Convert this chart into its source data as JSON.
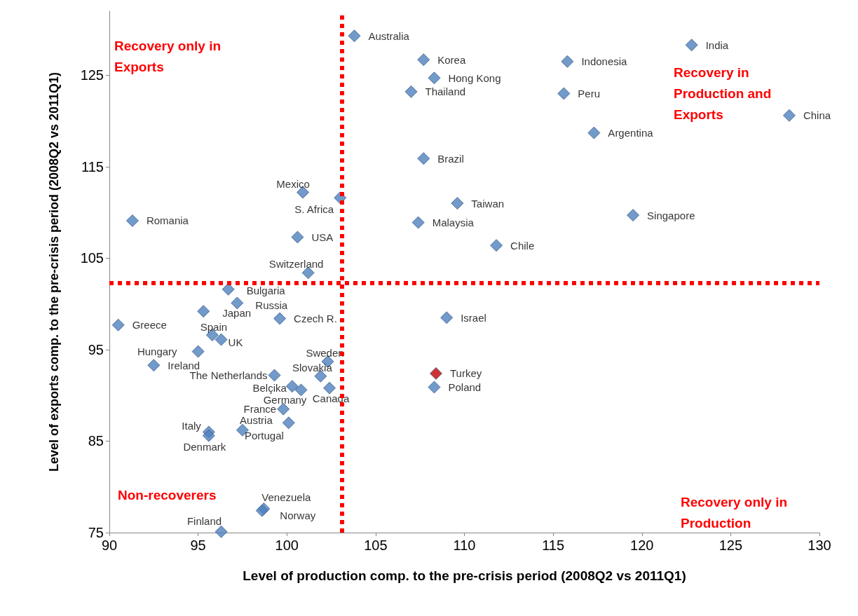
{
  "chart_data": {
    "type": "scatter",
    "xlabel": "Level of production comp. to the pre-crisis period (2008Q2 vs 2011Q1)",
    "ylabel": "Level of exports comp. to the pre-crisis period (2008Q2 vs 2011Q1)",
    "x": [
      103.8,
      122.8,
      107.7,
      115.8,
      108.3,
      107.0,
      115.6,
      128.3,
      117.3,
      107.7,
      100.9,
      103.0,
      109.6,
      119.5,
      91.3,
      107.4,
      100.6,
      111.8,
      101.2,
      96.7,
      97.2,
      95.3,
      99.6,
      109.0,
      90.5,
      95.8,
      96.3,
      95.0,
      102.3,
      92.5,
      108.4,
      99.3,
      101.9,
      108.3,
      100.3,
      100.8,
      102.4,
      99.8,
      100.1,
      97.5,
      95.6,
      95.6,
      98.7,
      98.6,
      96.3
    ],
    "values": [
      129.3,
      128.3,
      126.7,
      126.5,
      124.7,
      123.2,
      123.0,
      120.6,
      118.7,
      115.9,
      112.2,
      111.6,
      111.0,
      109.7,
      109.1,
      108.9,
      107.3,
      106.4,
      103.4,
      101.6,
      100.1,
      99.2,
      98.4,
      98.5,
      97.7,
      96.6,
      96.1,
      94.8,
      93.7,
      93.3,
      92.4,
      92.2,
      92.1,
      90.9,
      91.0,
      90.6,
      90.8,
      88.5,
      87.0,
      86.2,
      86.0,
      85.6,
      77.6,
      77.4,
      75.1
    ],
    "colors": [
      "#4f81bd",
      "#4f81bd",
      "#4f81bd",
      "#4f81bd",
      "#4f81bd",
      "#4f81bd",
      "#4f81bd",
      "#4f81bd",
      "#4f81bd",
      "#4f81bd",
      "#4f81bd",
      "#4f81bd",
      "#4f81bd",
      "#4f81bd",
      "#4f81bd",
      "#4f81bd",
      "#4f81bd",
      "#4f81bd",
      "#4f81bd",
      "#4f81bd",
      "#4f81bd",
      "#4f81bd",
      "#4f81bd",
      "#4f81bd",
      "#4f81bd",
      "#4f81bd",
      "#4f81bd",
      "#4f81bd",
      "#4f81bd",
      "#4f81bd",
      "#c00000",
      "#4f81bd",
      "#4f81bd",
      "#4f81bd",
      "#4f81bd",
      "#4f81bd",
      "#4f81bd",
      "#4f81bd",
      "#4f81bd",
      "#4f81bd",
      "#4f81bd",
      "#4f81bd",
      "#4f81bd",
      "#4f81bd",
      "#4f81bd"
    ],
    "marker": "diamond",
    "xlim": [
      90,
      130
    ],
    "ylim": [
      75,
      132
    ],
    "xticks": [
      90,
      95,
      100,
      105,
      110,
      115,
      120,
      125,
      130
    ],
    "yticks": [
      75,
      85,
      95,
      105,
      115,
      125
    ],
    "grid": false,
    "ref_lines": [
      {
        "axis": "x",
        "value": 103.1,
        "color": "#ff0000",
        "line_style": "dotted"
      },
      {
        "axis": "y",
        "value": 102.3,
        "color": "#ff0000",
        "line_style": "dotted"
      }
    ],
    "annotations": [
      "Recovery only in Exports",
      "Recovery in Production and Exports",
      "Non-recoverers",
      "Recovery only in Production",
      {
        "text": "Australia",
        "x": 103.8,
        "y": 129.3
      },
      {
        "text": "India",
        "x": 122.8,
        "y": 128.3
      },
      {
        "text": "Korea",
        "x": 107.7,
        "y": 126.7
      },
      {
        "text": "Indonesia",
        "x": 115.8,
        "y": 126.5
      },
      {
        "text": "Hong Kong",
        "x": 108.3,
        "y": 124.7
      },
      {
        "text": "Thailand",
        "x": 107.0,
        "y": 123.2
      },
      {
        "text": "Peru",
        "x": 115.6,
        "y": 123.0
      },
      {
        "text": "China",
        "x": 128.3,
        "y": 120.6
      },
      {
        "text": "Argentina",
        "x": 117.3,
        "y": 118.7
      },
      {
        "text": "Brazil",
        "x": 107.7,
        "y": 115.9
      },
      {
        "text": "Mexico",
        "x": 100.9,
        "y": 112.2
      },
      {
        "text": "S. Africa",
        "x": 103.0,
        "y": 111.6
      },
      {
        "text": "Taiwan",
        "x": 109.6,
        "y": 111.0
      },
      {
        "text": "Singapore",
        "x": 119.5,
        "y": 109.7
      },
      {
        "text": "Romania",
        "x": 91.3,
        "y": 109.1
      },
      {
        "text": "Malaysia",
        "x": 107.4,
        "y": 108.9
      },
      {
        "text": "USA",
        "x": 100.6,
        "y": 107.3
      },
      {
        "text": "Chile",
        "x": 111.8,
        "y": 106.4
      },
      {
        "text": "Switzerland",
        "x": 101.2,
        "y": 103.4
      },
      {
        "text": "Bulgaria",
        "x": 96.7,
        "y": 101.6
      },
      {
        "text": "Russia",
        "x": 97.2,
        "y": 100.1
      },
      {
        "text": "Japan",
        "x": 95.3,
        "y": 99.2
      },
      {
        "text": "Czech R.",
        "x": 99.6,
        "y": 98.4
      },
      {
        "text": "Israel",
        "x": 109.0,
        "y": 98.5
      },
      {
        "text": "Greece",
        "x": 90.5,
        "y": 97.7
      },
      {
        "text": "Spain",
        "x": 95.8,
        "y": 96.6
      },
      {
        "text": "UK",
        "x": 96.3,
        "y": 96.1
      },
      {
        "text": "Hungary",
        "x": 95.0,
        "y": 94.8
      },
      {
        "text": "Sweden",
        "x": 102.3,
        "y": 93.7
      },
      {
        "text": "Ireland",
        "x": 92.5,
        "y": 93.3
      },
      {
        "text": "Turkey",
        "x": 108.4,
        "y": 92.4
      },
      {
        "text": "The Netherlands",
        "x": 99.3,
        "y": 92.2
      },
      {
        "text": "Slovakia",
        "x": 101.9,
        "y": 92.1
      },
      {
        "text": "Poland",
        "x": 108.3,
        "y": 90.9
      },
      {
        "text": "Belçika",
        "x": 100.3,
        "y": 91.0
      },
      {
        "text": "Germany",
        "x": 100.8,
        "y": 90.6
      },
      {
        "text": "Canada",
        "x": 102.4,
        "y": 90.8
      },
      {
        "text": "France",
        "x": 99.8,
        "y": 88.5
      },
      {
        "text": "Austria",
        "x": 100.1,
        "y": 87.0
      },
      {
        "text": "Portugal",
        "x": 97.5,
        "y": 86.2
      },
      {
        "text": "Italy",
        "x": 95.6,
        "y": 86.0
      },
      {
        "text": "Denmark",
        "x": 95.6,
        "y": 85.6
      },
      {
        "text": "Venezuela",
        "x": 98.7,
        "y": 77.6
      },
      {
        "text": "Norway",
        "x": 98.6,
        "y": 77.4
      },
      {
        "text": "Finland",
        "x": 96.3,
        "y": 75.1
      }
    ]
  }
}
